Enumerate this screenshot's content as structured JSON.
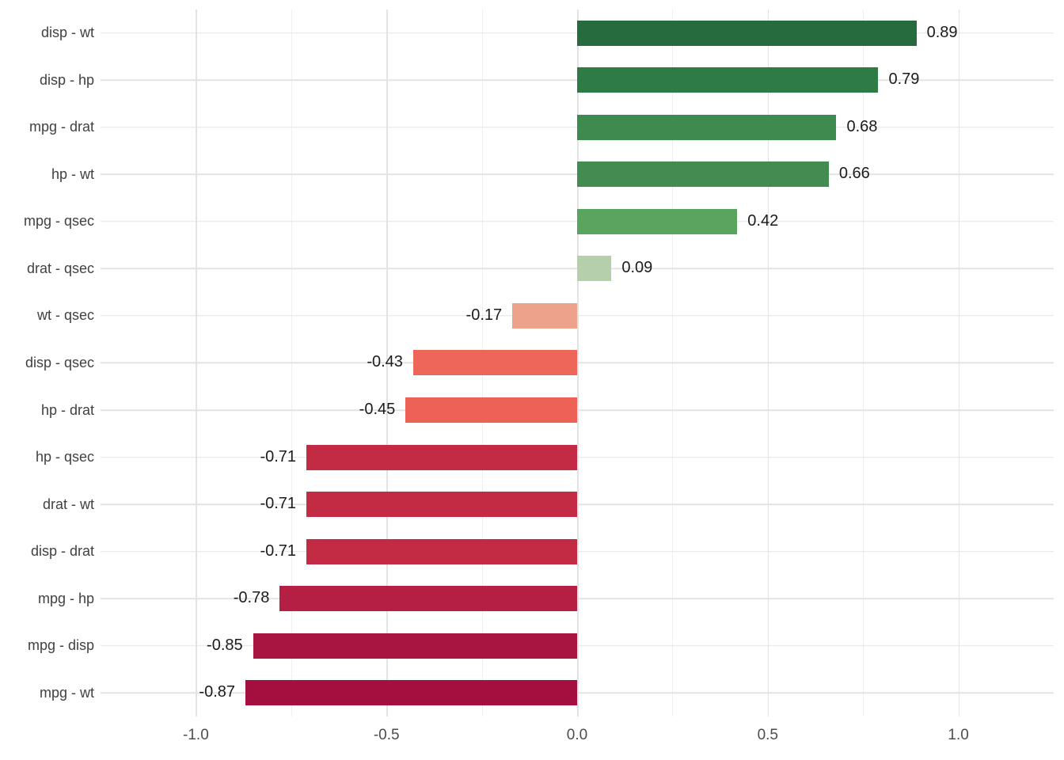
{
  "chart_data": {
    "type": "bar",
    "orientation": "horizontal",
    "title": "",
    "xlabel": "",
    "ylabel": "",
    "xlim": [
      -1.25,
      1.25
    ],
    "grid": true,
    "legend": false,
    "categories": [
      "disp - wt",
      "disp - hp",
      "mpg - drat",
      "hp - wt",
      "mpg - qsec",
      "drat - qsec",
      "wt - qsec",
      "disp - qsec",
      "hp - drat",
      "hp - qsec",
      "drat - wt",
      "disp - drat",
      "mpg - hp",
      "mpg - disp",
      "mpg - wt"
    ],
    "values": [
      0.89,
      0.79,
      0.68,
      0.66,
      0.42,
      0.09,
      -0.17,
      -0.43,
      -0.45,
      -0.71,
      -0.71,
      -0.71,
      -0.78,
      -0.85,
      -0.87
    ],
    "value_labels": [
      "0.89",
      "0.79",
      "0.68",
      "0.66",
      "0.42",
      "0.09",
      "-0.17",
      "-0.43",
      "-0.45",
      "-0.71",
      "-0.71",
      "-0.71",
      "-0.78",
      "-0.85",
      "-0.87"
    ],
    "bar_colors": [
      "#256b3d",
      "#2f7b45",
      "#3f8a4f",
      "#438c51",
      "#5aa55e",
      "#b4cfa9",
      "#eca28b",
      "#ee655a",
      "#ed6157",
      "#c32b44",
      "#c32b44",
      "#c32b44",
      "#b51f43",
      "#a81540",
      "#a50f40"
    ],
    "x_major_ticks": [
      -1.0,
      -0.5,
      0.0,
      0.5,
      1.0
    ],
    "x_tick_labels": [
      "-1.0",
      "-0.5",
      "0.0",
      "0.5",
      "1.0"
    ],
    "x_minor_ticks": [
      -0.75,
      -0.25,
      0.25,
      0.75
    ]
  },
  "style_colors": {
    "background": "#ffffff",
    "grid_major": "#e3e3e3",
    "grid_minor": "#efefef",
    "value_label_text": "#1b1b1b",
    "y_axis_text": "#414141",
    "x_axis_text": "#4d4d4d"
  }
}
